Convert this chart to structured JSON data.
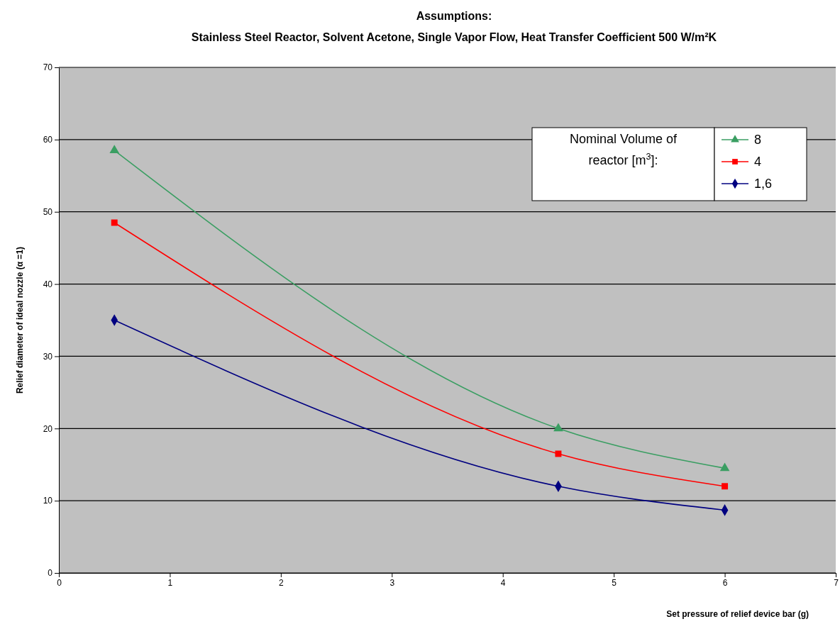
{
  "chart_data": {
    "type": "line",
    "title": "Assumptions:",
    "subtitle": "Stainless Steel Reactor, Solvent Acetone, Single Vapor Flow, Heat Transfer Coefficient 500 W/m²K",
    "xlabel": "Set pressure of relief device bar (g)",
    "ylabel": "Relief diameter of ideal nozzle (α =1)",
    "legend_title": "Nominal Volume of reactor [m$^{3}$]:",
    "legend": "top right",
    "grid": "y",
    "x": [
      0.5,
      4.5,
      6
    ],
    "series": [
      {
        "name": "8",
        "color": "#3a9e62",
        "marker": "triangle",
        "values": [
          58.5,
          20,
          14.5
        ]
      },
      {
        "name": "4",
        "color": "#ff0000",
        "marker": "square",
        "values": [
          48.5,
          16.5,
          12
        ]
      },
      {
        "name": "1,6",
        "color": "#000080",
        "marker": "diamond",
        "values": [
          35,
          12,
          8.7
        ]
      }
    ],
    "xlim": [
      0,
      7
    ],
    "xticks": [
      0,
      1,
      2,
      3,
      4,
      5,
      6,
      7
    ],
    "ylim": [
      0,
      70
    ],
    "yticks": [
      0,
      10,
      20,
      30,
      40,
      50,
      60,
      70
    ]
  }
}
